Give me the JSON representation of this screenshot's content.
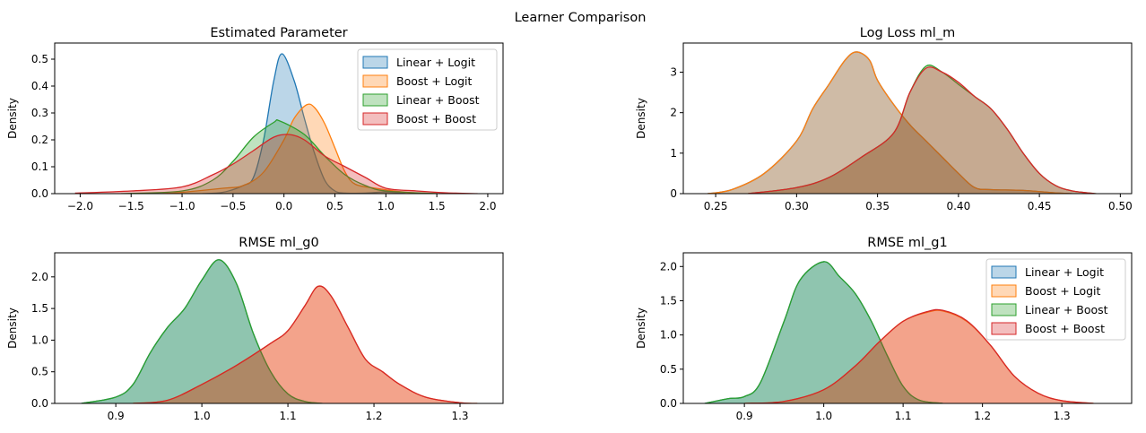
{
  "chart_data": {
    "title": "Learner Comparison",
    "colors": {
      "Linear + Logit": "#1f77b4",
      "Boost + Logit": "#ff7f0e",
      "Linear + Boost": "#2ca02c",
      "Boost + Boost": "#d62728"
    },
    "subplots": [
      {
        "type": "area",
        "title": "Estimated Parameter",
        "xlabel": "",
        "ylabel": "Density",
        "xlim": [
          -2.25,
          2.15
        ],
        "ylim": [
          0,
          0.56
        ],
        "xticks": [
          {
            "v": -2.0,
            "t": "−2.0"
          },
          {
            "v": -1.5,
            "t": "−1.5"
          },
          {
            "v": -1.0,
            "t": "−1.0"
          },
          {
            "v": -0.5,
            "t": "−0.5"
          },
          {
            "v": 0.0,
            "t": "0.0"
          },
          {
            "v": 0.5,
            "t": "0.5"
          },
          {
            "v": 1.0,
            "t": "1.0"
          },
          {
            "v": 1.5,
            "t": "1.5"
          },
          {
            "v": 2.0,
            "t": "2.0"
          }
        ],
        "yticks": [
          {
            "v": 0,
            "t": "0.0"
          },
          {
            "v": 0.1,
            "t": "0.1"
          },
          {
            "v": 0.2,
            "t": "0.2"
          },
          {
            "v": 0.3,
            "t": "0.3"
          },
          {
            "v": 0.4,
            "t": "0.4"
          },
          {
            "v": 0.5,
            "t": "0.5"
          }
        ],
        "legend": "top-right",
        "series": [
          {
            "name": "Linear + Logit",
            "x": [
              -0.8,
              -0.6,
              -0.4,
              -0.3,
              -0.2,
              -0.1,
              -0.02,
              0.1,
              0.2,
              0.3,
              0.4,
              0.5,
              0.6,
              0.8,
              1.0,
              1.2
            ],
            "y": [
              0,
              0.005,
              0.03,
              0.06,
              0.2,
              0.42,
              0.52,
              0.42,
              0.28,
              0.15,
              0.05,
              0.01,
              0.002,
              0.002,
              0.006,
              0
            ]
          },
          {
            "name": "Boost + Logit",
            "x": [
              -1.2,
              -1.0,
              -0.6,
              -0.4,
              -0.2,
              0,
              0.1,
              0.22,
              0.3,
              0.4,
              0.5,
              0.6,
              0.7,
              0.9,
              1.2,
              1.5
            ],
            "y": [
              0,
              0.005,
              0.02,
              0.03,
              0.08,
              0.2,
              0.28,
              0.33,
              0.32,
              0.26,
              0.17,
              0.08,
              0.035,
              0.02,
              0.005,
              0
            ]
          },
          {
            "name": "Linear + Boost",
            "x": [
              -1.6,
              -1.0,
              -0.7,
              -0.5,
              -0.3,
              -0.1,
              -0.04,
              0.2,
              0.4,
              0.6,
              0.8,
              1.0,
              1.5
            ],
            "y": [
              0,
              0.01,
              0.05,
              0.12,
              0.21,
              0.265,
              0.27,
              0.22,
              0.14,
              0.07,
              0.03,
              0.01,
              0
            ]
          },
          {
            "name": "Boost + Boost",
            "x": [
              -2.05,
              -1.5,
              -1.0,
              -0.7,
              -0.5,
              -0.3,
              -0.1,
              0.05,
              0.2,
              0.4,
              0.6,
              0.8,
              1.0,
              1.3,
              1.6,
              1.9
            ],
            "y": [
              0.002,
              0.01,
              0.025,
              0.07,
              0.11,
              0.16,
              0.21,
              0.22,
              0.2,
              0.14,
              0.1,
              0.06,
              0.02,
              0.01,
              0.003,
              0
            ]
          }
        ]
      },
      {
        "type": "area",
        "title": "Log Loss ml_m",
        "xlabel": "",
        "ylabel": "Density",
        "xlim": [
          0.23,
          0.507
        ],
        "ylim": [
          0,
          3.72
        ],
        "xticks": [
          {
            "v": 0.25,
            "t": "0.25"
          },
          {
            "v": 0.3,
            "t": "0.30"
          },
          {
            "v": 0.35,
            "t": "0.35"
          },
          {
            "v": 0.4,
            "t": "0.40"
          },
          {
            "v": 0.45,
            "t": "0.45"
          },
          {
            "v": 0.5,
            "t": "0.50"
          }
        ],
        "yticks": [
          {
            "v": 0,
            "t": "0"
          },
          {
            "v": 1,
            "t": "1"
          },
          {
            "v": 2,
            "t": "2"
          },
          {
            "v": 3,
            "t": "3"
          }
        ],
        "series": [
          {
            "name": "Linear + Logit",
            "x": [
              0.245,
              0.26,
              0.28,
              0.3,
              0.31,
              0.32,
              0.33,
              0.337,
              0.345,
              0.35,
              0.36,
              0.37,
              0.38,
              0.39,
              0.4,
              0.41,
              0.42,
              0.44,
              0.46,
              0.47
            ],
            "y": [
              0,
              0.1,
              0.5,
              1.3,
              2.1,
              2.7,
              3.3,
              3.5,
              3.3,
              2.8,
              2.2,
              1.7,
              1.3,
              0.9,
              0.5,
              0.15,
              0.1,
              0.08,
              0.02,
              0
            ]
          },
          {
            "name": "Boost + Logit",
            "x": [
              0.245,
              0.26,
              0.28,
              0.3,
              0.31,
              0.32,
              0.33,
              0.337,
              0.345,
              0.35,
              0.36,
              0.37,
              0.38,
              0.39,
              0.4,
              0.41,
              0.42,
              0.44,
              0.46,
              0.47
            ],
            "y": [
              0,
              0.1,
              0.5,
              1.3,
              2.1,
              2.7,
              3.3,
              3.5,
              3.3,
              2.8,
              2.2,
              1.7,
              1.3,
              0.9,
              0.5,
              0.15,
              0.1,
              0.08,
              0.02,
              0
            ]
          },
          {
            "name": "Linear + Boost",
            "x": [
              0.27,
              0.3,
              0.32,
              0.34,
              0.36,
              0.37,
              0.38,
              0.39,
              0.4,
              0.41,
              0.42,
              0.43,
              0.44,
              0.45,
              0.46,
              0.47,
              0.485
            ],
            "y": [
              0,
              0.15,
              0.4,
              0.9,
              1.5,
              2.5,
              3.15,
              3.0,
              2.7,
              2.4,
              2.1,
              1.6,
              1.0,
              0.5,
              0.2,
              0.07,
              0
            ]
          },
          {
            "name": "Boost + Boost",
            "x": [
              0.27,
              0.3,
              0.32,
              0.34,
              0.36,
              0.37,
              0.38,
              0.39,
              0.4,
              0.41,
              0.42,
              0.43,
              0.44,
              0.45,
              0.46,
              0.47,
              0.485
            ],
            "y": [
              0,
              0.15,
              0.4,
              0.9,
              1.5,
              2.5,
              3.1,
              3.0,
              2.75,
              2.4,
              2.1,
              1.6,
              1.0,
              0.5,
              0.2,
              0.07,
              0
            ]
          }
        ]
      },
      {
        "type": "area",
        "title": "RMSE ml_g0",
        "xlabel": "",
        "ylabel": "Density",
        "xlim": [
          0.829,
          1.35
        ],
        "ylim": [
          0,
          2.38
        ],
        "xticks": [
          {
            "v": 0.9,
            "t": "0.9"
          },
          {
            "v": 1.0,
            "t": "1.0"
          },
          {
            "v": 1.1,
            "t": "1.1"
          },
          {
            "v": 1.2,
            "t": "1.2"
          },
          {
            "v": 1.3,
            "t": "1.3"
          }
        ],
        "yticks": [
          {
            "v": 0,
            "t": "0.0"
          },
          {
            "v": 0.5,
            "t": "0.5"
          },
          {
            "v": 1.0,
            "t": "1.0"
          },
          {
            "v": 1.5,
            "t": "1.5"
          },
          {
            "v": 2.0,
            "t": "2.0"
          }
        ],
        "series": [
          {
            "name": "Linear + Logit",
            "x": [
              0.86,
              0.9,
              0.92,
              0.94,
              0.96,
              0.98,
              1.0,
              1.02,
              1.04,
              1.06,
              1.08,
              1.1,
              1.12,
              1.14
            ],
            "y": [
              0,
              0.1,
              0.3,
              0.8,
              1.2,
              1.5,
              1.95,
              2.27,
              1.9,
              1.1,
              0.5,
              0.15,
              0.03,
              0
            ]
          },
          {
            "name": "Boost + Logit",
            "x": [
              0.92,
              0.96,
              1.0,
              1.04,
              1.08,
              1.1,
              1.12,
              1.135,
              1.15,
              1.17,
              1.19,
              1.21,
              1.23,
              1.26,
              1.3,
              1.32
            ],
            "y": [
              0,
              0.05,
              0.3,
              0.6,
              0.95,
              1.15,
              1.55,
              1.85,
              1.7,
              1.2,
              0.7,
              0.5,
              0.3,
              0.1,
              0.01,
              0
            ]
          },
          {
            "name": "Linear + Boost",
            "x": [
              0.86,
              0.9,
              0.92,
              0.94,
              0.96,
              0.98,
              1.0,
              1.02,
              1.04,
              1.06,
              1.08,
              1.1,
              1.12,
              1.14
            ],
            "y": [
              0,
              0.1,
              0.3,
              0.8,
              1.2,
              1.5,
              1.95,
              2.27,
              1.9,
              1.1,
              0.5,
              0.15,
              0.03,
              0
            ]
          },
          {
            "name": "Boost + Boost",
            "x": [
              0.92,
              0.96,
              1.0,
              1.04,
              1.08,
              1.1,
              1.12,
              1.135,
              1.15,
              1.17,
              1.19,
              1.21,
              1.23,
              1.26,
              1.3,
              1.32
            ],
            "y": [
              0,
              0.05,
              0.3,
              0.6,
              0.95,
              1.15,
              1.55,
              1.85,
              1.7,
              1.2,
              0.7,
              0.5,
              0.3,
              0.1,
              0.01,
              0
            ]
          }
        ]
      },
      {
        "type": "area",
        "title": "RMSE ml_g1",
        "xlabel": "",
        "ylabel": "Density",
        "xlim": [
          0.823,
          1.388
        ],
        "ylim": [
          0,
          2.2
        ],
        "xticks": [
          {
            "v": 0.9,
            "t": "0.9"
          },
          {
            "v": 1.0,
            "t": "1.0"
          },
          {
            "v": 1.1,
            "t": "1.1"
          },
          {
            "v": 1.2,
            "t": "1.2"
          },
          {
            "v": 1.3,
            "t": "1.3"
          }
        ],
        "yticks": [
          {
            "v": 0,
            "t": "0.0"
          },
          {
            "v": 0.5,
            "t": "0.5"
          },
          {
            "v": 1.0,
            "t": "1.0"
          },
          {
            "v": 1.5,
            "t": "1.5"
          },
          {
            "v": 2.0,
            "t": "2.0"
          }
        ],
        "legend": "top-right",
        "series": [
          {
            "name": "Linear + Logit",
            "x": [
              0.85,
              0.88,
              0.9,
              0.92,
              0.95,
              0.97,
              1.0,
              1.02,
              1.04,
              1.06,
              1.08,
              1.1,
              1.12,
              1.15
            ],
            "y": [
              0,
              0.07,
              0.1,
              0.3,
              1.2,
              1.8,
              2.07,
              1.85,
              1.6,
              1.2,
              0.7,
              0.25,
              0.05,
              0
            ]
          },
          {
            "name": "Boost + Logit",
            "x": [
              0.9,
              0.95,
              1.0,
              1.04,
              1.07,
              1.1,
              1.13,
              1.15,
              1.18,
              1.21,
              1.24,
              1.27,
              1.3,
              1.34
            ],
            "y": [
              0,
              0.03,
              0.2,
              0.55,
              0.9,
              1.2,
              1.33,
              1.35,
              1.2,
              0.85,
              0.4,
              0.15,
              0.04,
              0
            ]
          },
          {
            "name": "Linear + Boost",
            "x": [
              0.85,
              0.88,
              0.9,
              0.92,
              0.95,
              0.97,
              1.0,
              1.02,
              1.04,
              1.06,
              1.08,
              1.1,
              1.12,
              1.15
            ],
            "y": [
              0,
              0.07,
              0.1,
              0.3,
              1.2,
              1.8,
              2.07,
              1.85,
              1.6,
              1.2,
              0.7,
              0.25,
              0.05,
              0
            ]
          },
          {
            "name": "Boost + Boost",
            "x": [
              0.9,
              0.95,
              1.0,
              1.04,
              1.07,
              1.1,
              1.13,
              1.15,
              1.18,
              1.21,
              1.24,
              1.27,
              1.3,
              1.34
            ],
            "y": [
              0,
              0.03,
              0.2,
              0.55,
              0.9,
              1.2,
              1.34,
              1.36,
              1.21,
              0.85,
              0.4,
              0.15,
              0.04,
              0
            ]
          }
        ]
      }
    ]
  }
}
